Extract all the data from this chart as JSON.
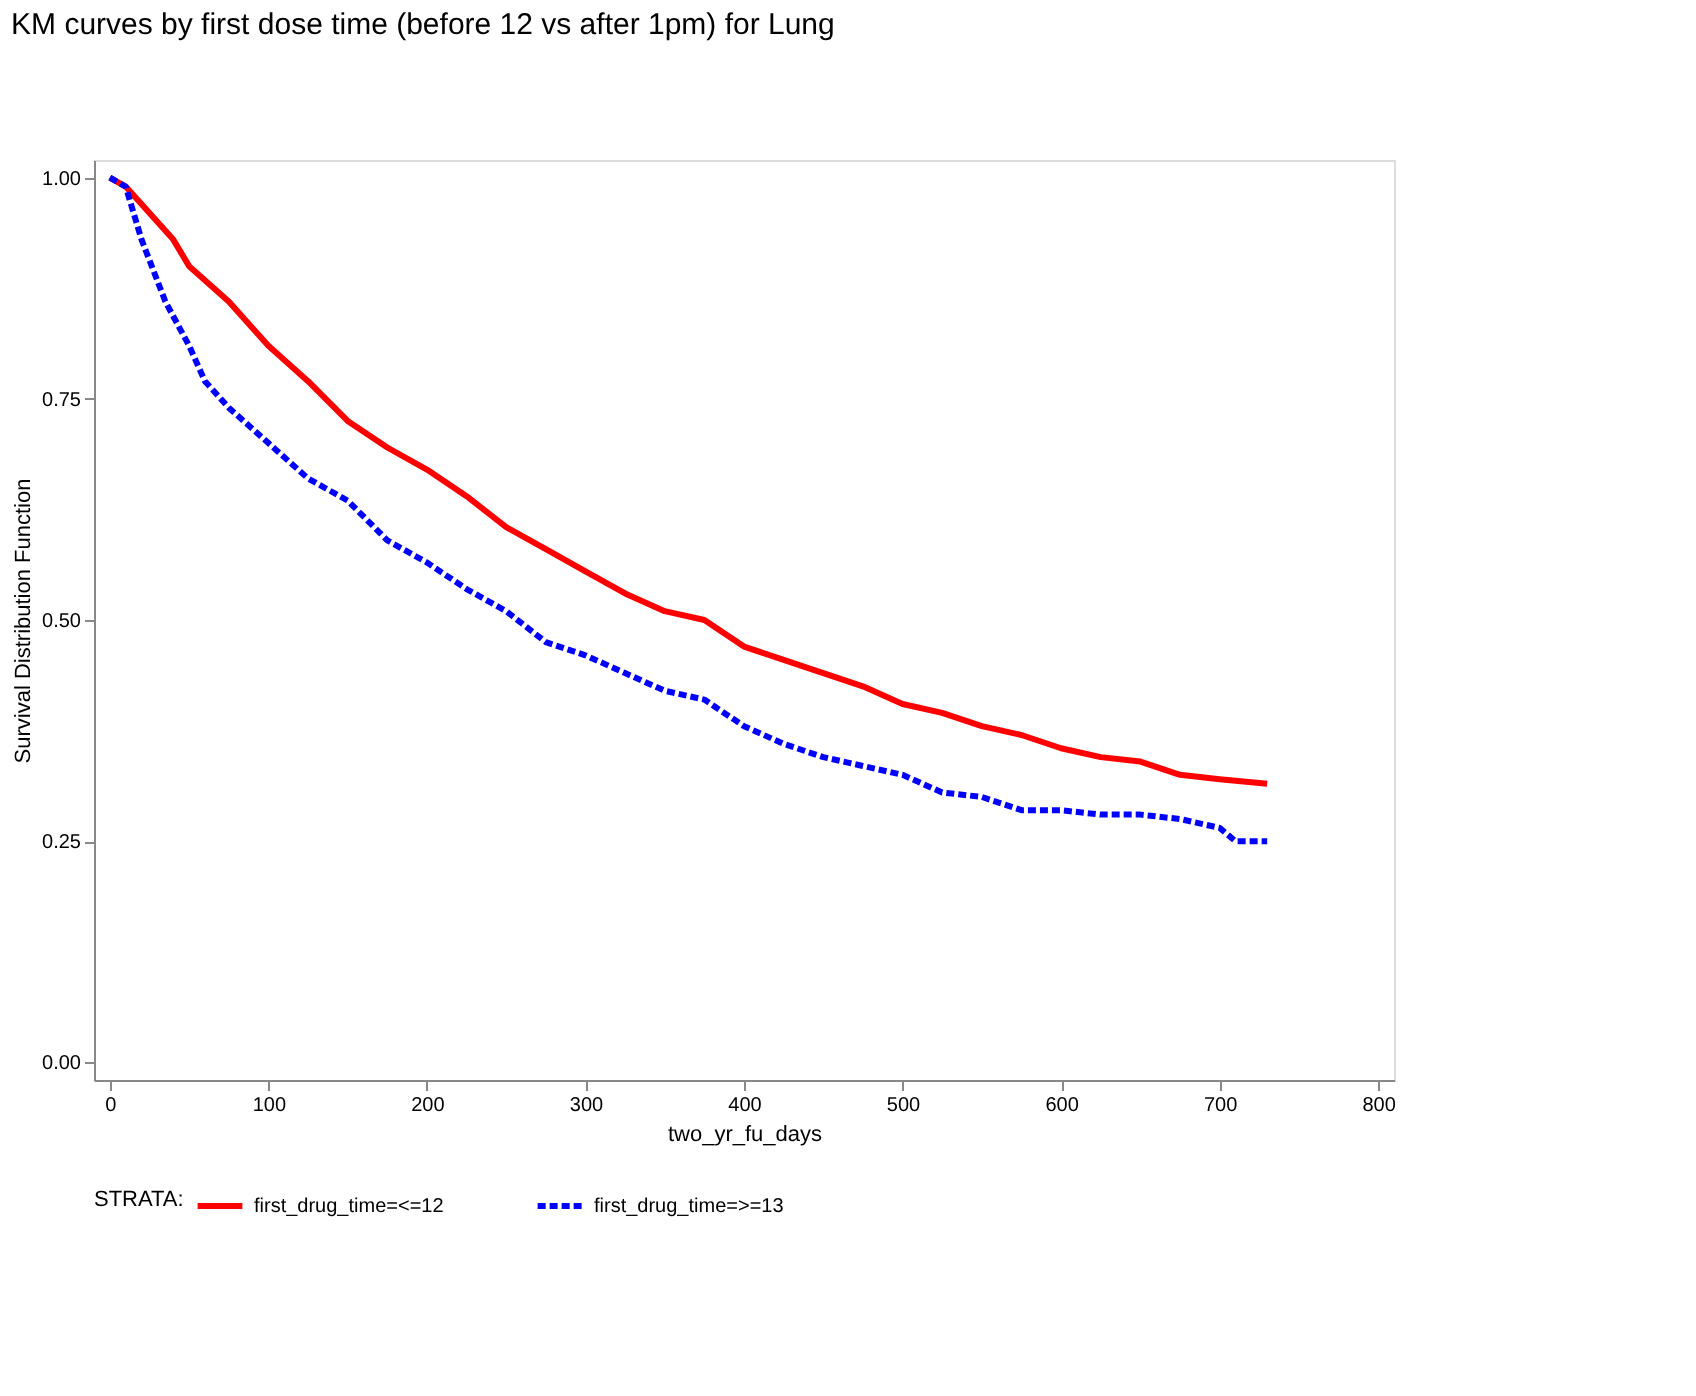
{
  "chart_data": {
    "type": "line",
    "title": "KM curves by first dose time (before 12 vs after 1pm) for Lung",
    "xlabel": "two_yr_fu_days",
    "ylabel": "Survival Distribution Function",
    "legend_title": "STRATA:",
    "legend": "bottom",
    "grid": false,
    "xlim": [
      -10,
      810
    ],
    "xticks": [
      0,
      100,
      200,
      300,
      400,
      500,
      600,
      700,
      800
    ],
    "ylim": [
      -0.02,
      1.02
    ],
    "yticks": [
      {
        "value": 0,
        "label": "0.00"
      },
      {
        "value": 0.25,
        "label": "0.25"
      },
      {
        "value": 0.5,
        "label": "0.50"
      },
      {
        "value": 0.75,
        "label": "0.75"
      },
      {
        "value": 1,
        "label": "1.00"
      }
    ],
    "series": [
      {
        "name": "first_drug_time=<=12",
        "color": "#ff0000",
        "line_style": "solid",
        "x": [
          0,
          10,
          25,
          40,
          50,
          75,
          100,
          125,
          150,
          175,
          200,
          225,
          250,
          275,
          300,
          325,
          350,
          375,
          400,
          425,
          450,
          475,
          500,
          525,
          550,
          575,
          600,
          625,
          650,
          675,
          700,
          730
        ],
        "values": [
          1.0,
          0.99,
          0.96,
          0.93,
          0.9,
          0.86,
          0.81,
          0.77,
          0.725,
          0.695,
          0.67,
          0.64,
          0.605,
          0.58,
          0.555,
          0.53,
          0.51,
          0.5,
          0.47,
          0.455,
          0.44,
          0.425,
          0.405,
          0.395,
          0.38,
          0.37,
          0.355,
          0.345,
          0.34,
          0.325,
          0.32,
          0.315
        ]
      },
      {
        "name": "first_drug_time=>=13",
        "color": "#0000ff",
        "line_style": "dashed",
        "x": [
          0,
          10,
          20,
          35,
          50,
          60,
          75,
          100,
          125,
          150,
          175,
          200,
          225,
          250,
          275,
          300,
          325,
          350,
          375,
          400,
          425,
          450,
          475,
          500,
          525,
          550,
          575,
          600,
          625,
          650,
          675,
          700,
          710,
          730
        ],
        "values": [
          1.0,
          0.99,
          0.93,
          0.86,
          0.81,
          0.77,
          0.74,
          0.7,
          0.66,
          0.635,
          0.59,
          0.565,
          0.535,
          0.51,
          0.475,
          0.46,
          0.44,
          0.42,
          0.41,
          0.38,
          0.36,
          0.345,
          0.335,
          0.325,
          0.305,
          0.3,
          0.285,
          0.285,
          0.28,
          0.28,
          0.275,
          0.265,
          0.25,
          0.25
        ]
      }
    ]
  }
}
